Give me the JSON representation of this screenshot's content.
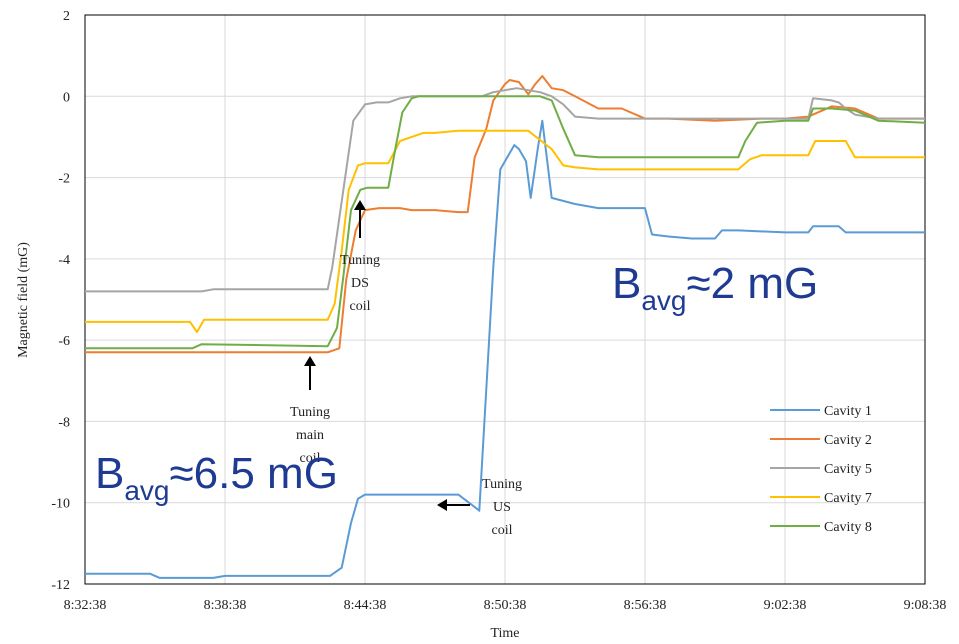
{
  "chart_data": {
    "type": "line",
    "xlabel": "Time",
    "ylabel": "Magnetic field (mG)",
    "x_ticks": [
      "8:32:38",
      "8:38:38",
      "8:44:38",
      "8:50:38",
      "8:56:38",
      "9:02:38",
      "9:08:38"
    ],
    "xlim_minutes": [
      0,
      36
    ],
    "ylim": [
      -12,
      2
    ],
    "y_ticks": [
      "2",
      "0",
      "-2",
      "-4",
      "-6",
      "-8",
      "-10",
      "-12"
    ],
    "grid": true,
    "legend_position": "bottom-right",
    "series": [
      {
        "name": "Cavity 1",
        "color": "#5b9bd5",
        "x": [
          0,
          2.8,
          3.2,
          5.5,
          6,
          10.5,
          11,
          11.4,
          11.7,
          12,
          16,
          16.8,
          16.9,
          17.5,
          17.8,
          18.4,
          18.6,
          18.9,
          19.1,
          19.4,
          19.6,
          20,
          21,
          22,
          23,
          24,
          24.3,
          25,
          26,
          27,
          27.3,
          28,
          30,
          31,
          31.2,
          32.3,
          32.6,
          34,
          36
        ],
        "y": [
          -11.75,
          -11.75,
          -11.85,
          -11.85,
          -11.8,
          -11.8,
          -11.6,
          -10.5,
          -9.9,
          -9.8,
          -9.8,
          -10.15,
          -10.2,
          -4.2,
          -1.8,
          -1.2,
          -1.3,
          -1.6,
          -2.5,
          -1.3,
          -0.6,
          -2.5,
          -2.65,
          -2.75,
          -2.75,
          -2.75,
          -3.4,
          -3.45,
          -3.5,
          -3.5,
          -3.3,
          -3.3,
          -3.35,
          -3.35,
          -3.2,
          -3.2,
          -3.35,
          -3.35,
          -3.35
        ]
      },
      {
        "name": "Cavity 2",
        "color": "#ed7d31",
        "x": [
          0,
          10.4,
          10.9,
          11.2,
          11.6,
          12,
          12.6,
          13,
          13.5,
          14,
          14.5,
          15,
          16,
          16.4,
          16.7,
          17.2,
          17.5,
          18,
          18.2,
          18.6,
          19,
          19.3,
          19.6,
          20,
          20.5,
          21,
          22,
          23,
          24,
          25,
          27,
          29,
          30,
          31,
          32,
          33,
          34,
          36
        ],
        "y": [
          -6.3,
          -6.3,
          -6.2,
          -4.5,
          -3.3,
          -2.8,
          -2.75,
          -2.75,
          -2.75,
          -2.8,
          -2.8,
          -2.8,
          -2.85,
          -2.85,
          -1.5,
          -0.8,
          -0.1,
          0.3,
          0.4,
          0.35,
          0.05,
          0.3,
          0.5,
          0.2,
          0.15,
          0.0,
          -0.3,
          -0.3,
          -0.55,
          -0.55,
          -0.6,
          -0.55,
          -0.55,
          -0.5,
          -0.25,
          -0.3,
          -0.55,
          -0.55
        ]
      },
      {
        "name": "Cavity 5",
        "color": "#a5a5a5",
        "x": [
          0,
          5,
          5.5,
          10.4,
          10.6,
          10.9,
          11.2,
          11.5,
          12,
          12.5,
          13,
          13.5,
          14,
          15,
          16,
          17,
          17.5,
          18,
          18.5,
          19,
          19.5,
          20,
          20.5,
          21,
          22,
          24,
          26,
          28,
          30,
          31,
          31.2,
          32,
          32.3,
          32.6,
          33,
          34,
          36
        ],
        "y": [
          -4.8,
          -4.8,
          -4.75,
          -4.75,
          -4.2,
          -3.0,
          -1.8,
          -0.6,
          -0.2,
          -0.15,
          -0.15,
          -0.05,
          0.0,
          0.0,
          0.0,
          0.0,
          0.1,
          0.15,
          0.2,
          0.15,
          0.1,
          0.0,
          -0.2,
          -0.5,
          -0.55,
          -0.55,
          -0.55,
          -0.55,
          -0.55,
          -0.55,
          -0.05,
          -0.1,
          -0.15,
          -0.3,
          -0.45,
          -0.55,
          -0.55
        ]
      },
      {
        "name": "Cavity 7",
        "color": "#ffc000",
        "x": [
          0,
          4.5,
          4.8,
          5.1,
          5.3,
          10.4,
          10.7,
          11,
          11.3,
          11.7,
          12,
          12.4,
          13,
          13.5,
          14,
          14.5,
          15,
          16,
          17,
          18,
          19,
          20,
          20.5,
          21,
          22,
          24,
          26,
          28,
          28.5,
          29,
          31,
          31.3,
          32.6,
          33,
          36
        ],
        "y": [
          -5.55,
          -5.55,
          -5.8,
          -5.5,
          -5.5,
          -5.5,
          -5.1,
          -3.8,
          -2.3,
          -1.7,
          -1.65,
          -1.65,
          -1.65,
          -1.1,
          -1.0,
          -0.9,
          -0.9,
          -0.85,
          -0.85,
          -0.85,
          -0.85,
          -1.3,
          -1.7,
          -1.75,
          -1.8,
          -1.8,
          -1.8,
          -1.8,
          -1.55,
          -1.45,
          -1.45,
          -1.1,
          -1.1,
          -1.5,
          -1.5
        ]
      },
      {
        "name": "Cavity 8",
        "color": "#70ad47",
        "x": [
          0,
          4.6,
          5,
          10.4,
          10.8,
          11.1,
          11.4,
          11.8,
          12.1,
          12.5,
          13,
          13.3,
          13.6,
          14,
          14.3,
          15,
          16,
          17,
          18,
          19,
          19.5,
          20,
          20.5,
          21,
          22,
          24,
          26,
          28,
          28.3,
          28.8,
          30,
          31,
          31.2,
          32,
          33,
          34,
          36
        ],
        "y": [
          -6.2,
          -6.2,
          -6.1,
          -6.15,
          -5.7,
          -4.3,
          -2.8,
          -2.3,
          -2.25,
          -2.25,
          -2.25,
          -1.3,
          -0.4,
          -0.05,
          0.0,
          0.0,
          0.0,
          0.0,
          0.0,
          0.0,
          0.0,
          -0.1,
          -0.8,
          -1.45,
          -1.5,
          -1.5,
          -1.5,
          -1.5,
          -1.1,
          -0.65,
          -0.6,
          -0.6,
          -0.3,
          -0.3,
          -0.35,
          -0.6,
          -0.65
        ]
      }
    ],
    "annotations": [
      {
        "lines": [
          "Tuning",
          "main",
          "coil"
        ]
      },
      {
        "lines": [
          "Tuning",
          "DS",
          "coil"
        ]
      },
      {
        "lines": [
          "Tuning",
          "US",
          "coil"
        ]
      }
    ],
    "overlay_labels": [
      {
        "base": "B",
        "sub": "avg",
        "rest": "≈2 mG"
      },
      {
        "base": "B",
        "sub": "avg",
        "rest": "≈6.5 mG"
      }
    ]
  }
}
